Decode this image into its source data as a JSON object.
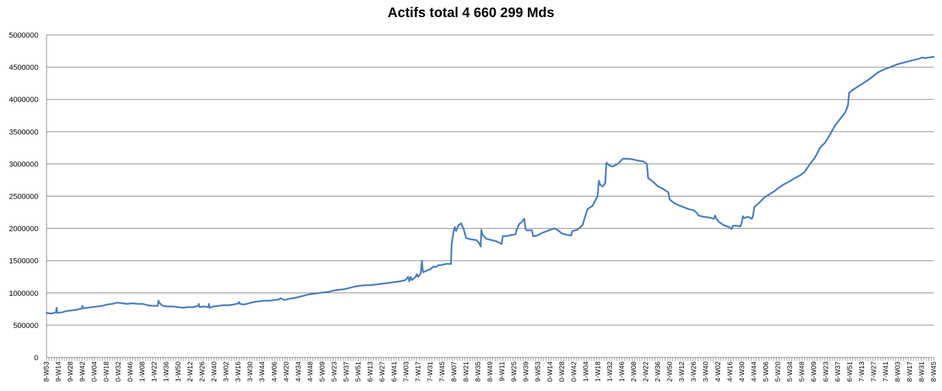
{
  "chart_data": {
    "type": "line",
    "title": "Actifs total 4 660 299 Mds",
    "xlabel": "",
    "ylabel": "",
    "ylim": [
      0,
      5000000
    ],
    "yticks": [
      0,
      500000,
      1000000,
      1500000,
      2000000,
      2500000,
      3000000,
      3500000,
      4000000,
      4500000,
      5000000
    ],
    "grid": "horizontal",
    "legend": "none",
    "line_color": "#4A7EBB",
    "x_tick_labels": [
      "8-W53",
      "9-W14",
      "9-W28",
      "9-W42",
      "0-W04",
      "0-W18",
      "0-W32",
      "0-W46",
      "1-W08",
      "1-W22",
      "1-W36",
      "1-W50",
      "2-W12",
      "2-W26",
      "2-W40",
      "3-W02",
      "3-W16",
      "3-W30",
      "3-W44",
      "4-W06",
      "4-W20",
      "4-W34",
      "4-W48",
      "5-W09",
      "5-W23",
      "5-W37",
      "5-W51",
      "6-W13",
      "6-W27",
      "6-W41",
      "7-W03",
      "7-W17",
      "7-W31",
      "7-W45",
      "8-W07",
      "8-W21",
      "8-W35",
      "8-W49",
      "9-W11",
      "9-W25",
      "9-W39",
      "9-W53",
      "0-W14",
      "0-W28",
      "0-W42",
      "1-W04",
      "1-W18",
      "1-W32",
      "1-W46",
      "2-W08",
      "2-W22",
      "2-W36",
      "2-W50",
      "3-W12",
      "3-W26",
      "3-W40",
      "4-W02",
      "4-W16",
      "4-W30",
      "4-W44",
      "5-W06",
      "5-W20",
      "5-W34",
      "5-W48",
      "6-W09",
      "6-W23",
      "6-W37",
      "6-W51",
      "7-W13",
      "7-W27",
      "7-W41",
      "8-W03",
      "8-W17",
      "8-W31",
      "8-W45"
    ],
    "series": [
      {
        "points": [
          [
            0,
            690000
          ],
          [
            8,
            680000
          ],
          [
            15,
            700000
          ],
          [
            16,
            770000
          ],
          [
            17,
            690000
          ],
          [
            24,
            700000
          ],
          [
            32,
            720000
          ],
          [
            40,
            730000
          ],
          [
            48,
            740000
          ],
          [
            56,
            760000
          ],
          [
            57,
            800000
          ],
          [
            58,
            760000
          ],
          [
            64,
            770000
          ],
          [
            72,
            780000
          ],
          [
            80,
            790000
          ],
          [
            88,
            800000
          ],
          [
            96,
            820000
          ],
          [
            104,
            830000
          ],
          [
            112,
            850000
          ],
          [
            120,
            840000
          ],
          [
            128,
            830000
          ],
          [
            136,
            840000
          ],
          [
            144,
            830000
          ],
          [
            152,
            830000
          ],
          [
            160,
            810000
          ],
          [
            168,
            800000
          ],
          [
            176,
            800000
          ],
          [
            177,
            880000
          ],
          [
            178,
            850000
          ],
          [
            184,
            800000
          ],
          [
            192,
            790000
          ],
          [
            200,
            790000
          ],
          [
            208,
            780000
          ],
          [
            216,
            770000
          ],
          [
            224,
            780000
          ],
          [
            232,
            780000
          ],
          [
            240,
            800000
          ],
          [
            241,
            830000
          ],
          [
            242,
            780000
          ],
          [
            248,
            790000
          ],
          [
            256,
            780000
          ],
          [
            257,
            830000
          ],
          [
            258,
            770000
          ],
          [
            264,
            790000
          ],
          [
            272,
            800000
          ],
          [
            280,
            810000
          ],
          [
            288,
            810000
          ],
          [
            296,
            820000
          ],
          [
            304,
            840000
          ],
          [
            305,
            860000
          ],
          [
            306,
            830000
          ],
          [
            312,
            820000
          ],
          [
            320,
            840000
          ],
          [
            328,
            860000
          ],
          [
            336,
            870000
          ],
          [
            344,
            880000
          ],
          [
            352,
            880000
          ],
          [
            360,
            890000
          ],
          [
            368,
            900000
          ],
          [
            370,
            920000
          ],
          [
            376,
            890000
          ],
          [
            384,
            910000
          ],
          [
            392,
            920000
          ],
          [
            400,
            940000
          ],
          [
            408,
            960000
          ],
          [
            416,
            980000
          ],
          [
            424,
            990000
          ],
          [
            432,
            1000000
          ],
          [
            440,
            1010000
          ],
          [
            448,
            1020000
          ],
          [
            456,
            1040000
          ],
          [
            464,
            1050000
          ],
          [
            472,
            1060000
          ],
          [
            480,
            1080000
          ],
          [
            488,
            1100000
          ],
          [
            496,
            1110000
          ],
          [
            504,
            1120000
          ],
          [
            512,
            1120000
          ],
          [
            520,
            1130000
          ],
          [
            528,
            1140000
          ],
          [
            536,
            1150000
          ],
          [
            544,
            1160000
          ],
          [
            552,
            1170000
          ],
          [
            560,
            1180000
          ],
          [
            568,
            1200000
          ],
          [
            572,
            1250000
          ],
          [
            574,
            1180000
          ],
          [
            576,
            1250000
          ],
          [
            578,
            1200000
          ],
          [
            584,
            1250000
          ],
          [
            586,
            1290000
          ],
          [
            588,
            1250000
          ],
          [
            592,
            1300000
          ],
          [
            594,
            1500000
          ],
          [
            595,
            1380000
          ],
          [
            596,
            1320000
          ],
          [
            600,
            1340000
          ],
          [
            608,
            1370000
          ],
          [
            612,
            1410000
          ],
          [
            616,
            1400000
          ],
          [
            620,
            1430000
          ],
          [
            624,
            1430000
          ],
          [
            632,
            1450000
          ],
          [
            640,
            1450000
          ],
          [
            641,
            1750000
          ],
          [
            644,
            1950000
          ],
          [
            646,
            2020000
          ],
          [
            648,
            1960000
          ],
          [
            652,
            2050000
          ],
          [
            656,
            2080000
          ],
          [
            660,
            1990000
          ],
          [
            664,
            1850000
          ],
          [
            672,
            1830000
          ],
          [
            680,
            1820000
          ],
          [
            684,
            1780000
          ],
          [
            687,
            1720000
          ],
          [
            688,
            1980000
          ],
          [
            690,
            1900000
          ],
          [
            696,
            1840000
          ],
          [
            704,
            1820000
          ],
          [
            712,
            1800000
          ],
          [
            720,
            1760000
          ],
          [
            722,
            1880000
          ],
          [
            728,
            1880000
          ],
          [
            736,
            1900000
          ],
          [
            742,
            1910000
          ],
          [
            744,
            1980000
          ],
          [
            748,
            2070000
          ],
          [
            752,
            2100000
          ],
          [
            756,
            2150000
          ],
          [
            758,
            1990000
          ],
          [
            760,
            1970000
          ],
          [
            768,
            1970000
          ],
          [
            770,
            1880000
          ],
          [
            776,
            1890000
          ],
          [
            784,
            1930000
          ],
          [
            792,
            1960000
          ],
          [
            800,
            1990000
          ],
          [
            804,
            2000000
          ],
          [
            808,
            1980000
          ],
          [
            816,
            1920000
          ],
          [
            824,
            1900000
          ],
          [
            830,
            1890000
          ],
          [
            832,
            1960000
          ],
          [
            840,
            1980000
          ],
          [
            848,
            2050000
          ],
          [
            856,
            2300000
          ],
          [
            864,
            2350000
          ],
          [
            872,
            2500000
          ],
          [
            874,
            2740000
          ],
          [
            876,
            2680000
          ],
          [
            880,
            2650000
          ],
          [
            884,
            2700000
          ],
          [
            886,
            3020000
          ],
          [
            890,
            2980000
          ],
          [
            896,
            2960000
          ],
          [
            904,
            3000000
          ],
          [
            912,
            3080000
          ],
          [
            920,
            3080000
          ],
          [
            928,
            3070000
          ],
          [
            936,
            3050000
          ],
          [
            944,
            3040000
          ],
          [
            950,
            3000000
          ],
          [
            952,
            2780000
          ],
          [
            960,
            2720000
          ],
          [
            968,
            2650000
          ],
          [
            976,
            2610000
          ],
          [
            984,
            2560000
          ],
          [
            986,
            2450000
          ],
          [
            992,
            2400000
          ],
          [
            1000,
            2360000
          ],
          [
            1008,
            2330000
          ],
          [
            1016,
            2300000
          ],
          [
            1024,
            2280000
          ],
          [
            1028,
            2250000
          ],
          [
            1032,
            2200000
          ],
          [
            1040,
            2180000
          ],
          [
            1048,
            2170000
          ],
          [
            1056,
            2150000
          ],
          [
            1058,
            2200000
          ],
          [
            1060,
            2150000
          ],
          [
            1064,
            2100000
          ],
          [
            1072,
            2050000
          ],
          [
            1080,
            2020000
          ],
          [
            1084,
            1990000
          ],
          [
            1086,
            2040000
          ],
          [
            1092,
            2040000
          ],
          [
            1098,
            2030000
          ],
          [
            1100,
            2090000
          ],
          [
            1102,
            2190000
          ],
          [
            1104,
            2160000
          ],
          [
            1110,
            2180000
          ],
          [
            1116,
            2150000
          ],
          [
            1118,
            2200000
          ],
          [
            1120,
            2330000
          ],
          [
            1128,
            2400000
          ],
          [
            1136,
            2480000
          ],
          [
            1144,
            2530000
          ],
          [
            1152,
            2580000
          ],
          [
            1160,
            2640000
          ],
          [
            1168,
            2690000
          ],
          [
            1176,
            2730000
          ],
          [
            1184,
            2780000
          ],
          [
            1192,
            2820000
          ],
          [
            1200,
            2880000
          ],
          [
            1208,
            3000000
          ],
          [
            1216,
            3100000
          ],
          [
            1224,
            3250000
          ],
          [
            1232,
            3330000
          ],
          [
            1240,
            3460000
          ],
          [
            1248,
            3600000
          ],
          [
            1256,
            3700000
          ],
          [
            1264,
            3800000
          ],
          [
            1268,
            3900000
          ],
          [
            1270,
            4100000
          ],
          [
            1276,
            4150000
          ],
          [
            1284,
            4200000
          ],
          [
            1292,
            4250000
          ],
          [
            1300,
            4300000
          ],
          [
            1308,
            4360000
          ],
          [
            1316,
            4420000
          ],
          [
            1324,
            4460000
          ],
          [
            1332,
            4490000
          ],
          [
            1340,
            4520000
          ],
          [
            1348,
            4550000
          ],
          [
            1356,
            4570000
          ],
          [
            1364,
            4590000
          ],
          [
            1372,
            4610000
          ],
          [
            1380,
            4630000
          ],
          [
            1386,
            4650000
          ],
          [
            1390,
            4640000
          ],
          [
            1396,
            4650000
          ],
          [
            1404,
            4660000
          ]
        ]
      }
    ]
  }
}
